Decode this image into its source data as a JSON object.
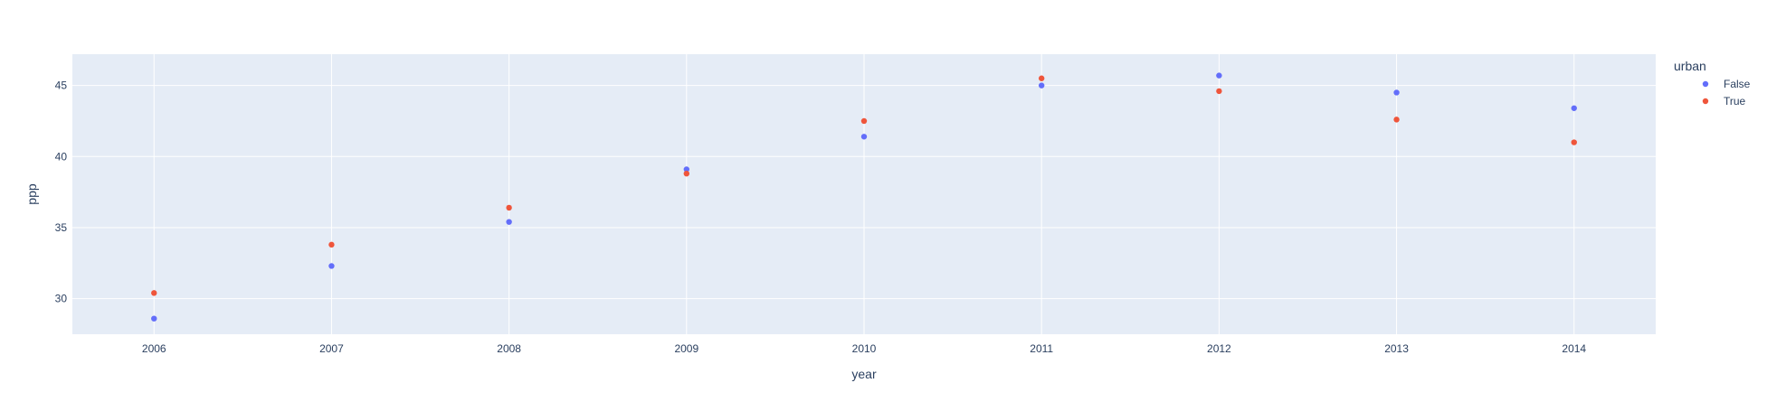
{
  "chart_data": {
    "type": "scatter",
    "title": "",
    "xlabel": "year",
    "ylabel": "ppp",
    "x": [
      2006,
      2007,
      2008,
      2009,
      2010,
      2011,
      2012,
      2013,
      2014
    ],
    "xlim": [
      2005.54,
      2014.46
    ],
    "ylim": [
      27.5,
      47.2
    ],
    "xticks": [
      2006,
      2007,
      2008,
      2009,
      2010,
      2011,
      2012,
      2013,
      2014
    ],
    "yticks": [
      30,
      35,
      40,
      45
    ],
    "grid": true,
    "legend": {
      "title": "urban",
      "placement": "right"
    },
    "series": [
      {
        "name": "False",
        "color": "#636efa",
        "values": [
          28.6,
          32.3,
          35.4,
          39.1,
          41.4,
          45.0,
          45.7,
          44.5,
          43.4
        ]
      },
      {
        "name": "True",
        "color": "#ef553b",
        "values": [
          30.4,
          33.8,
          36.4,
          38.8,
          42.5,
          45.5,
          44.6,
          42.6,
          41.0
        ]
      }
    ],
    "plot_bg": "#e5ecf6",
    "grid_color": "#ffffff",
    "text_color": "#2a3f5f"
  }
}
